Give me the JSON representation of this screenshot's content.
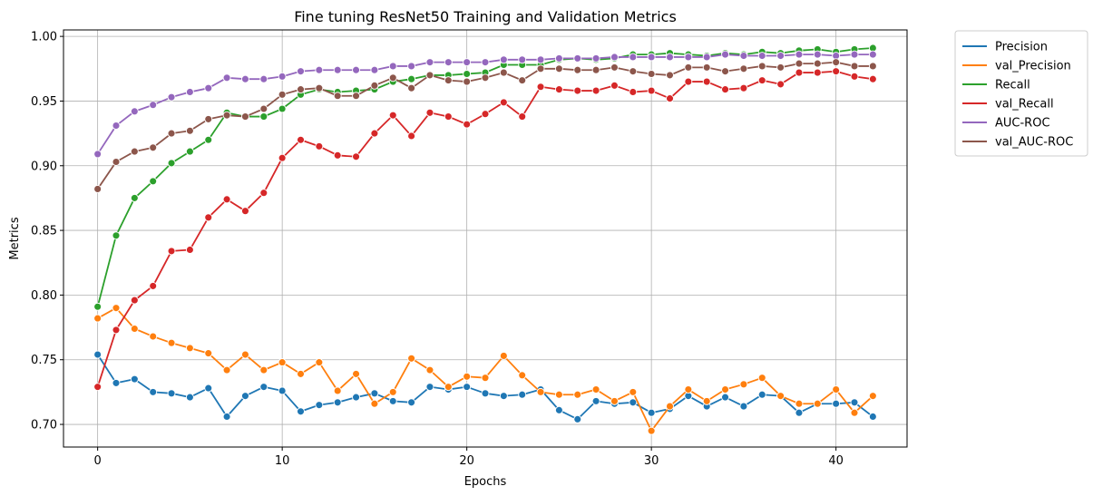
{
  "chart_data": {
    "type": "line",
    "title": "Fine tuning ResNet50 Training and Validation Metrics",
    "xlabel": "Epochs",
    "ylabel": "Metrics",
    "xlim": [
      -1.85,
      43.85
    ],
    "ylim": [
      0.6825,
      1.005
    ],
    "xticks": [
      0,
      10,
      20,
      30,
      40
    ],
    "yticks": [
      0.7,
      0.75,
      0.8,
      0.85,
      0.9,
      0.95,
      1.0
    ],
    "ytick_labels": [
      "0.70",
      "0.75",
      "0.80",
      "0.85",
      "0.90",
      "0.95",
      "1.00"
    ],
    "grid": true,
    "legend_position": "outside-top-right",
    "x": [
      0,
      1,
      2,
      3,
      4,
      5,
      6,
      7,
      8,
      9,
      10,
      11,
      12,
      13,
      14,
      15,
      16,
      17,
      18,
      19,
      20,
      21,
      22,
      23,
      24,
      25,
      26,
      27,
      28,
      29,
      30,
      31,
      32,
      33,
      34,
      35,
      36,
      37,
      38,
      39,
      40,
      41,
      42
    ],
    "series": [
      {
        "name": "Precision",
        "color": "#1f77b4",
        "values": [
          0.754,
          0.732,
          0.735,
          0.725,
          0.724,
          0.721,
          0.728,
          0.706,
          0.722,
          0.729,
          0.726,
          0.71,
          0.715,
          0.717,
          0.721,
          0.724,
          0.718,
          0.717,
          0.729,
          0.727,
          0.729,
          0.724,
          0.722,
          0.723,
          0.727,
          0.711,
          0.704,
          0.718,
          0.716,
          0.717,
          0.709,
          0.712,
          0.722,
          0.714,
          0.721,
          0.714,
          0.723,
          0.722,
          0.709,
          0.716,
          0.716,
          0.717,
          0.706
        ]
      },
      {
        "name": "val_Precision",
        "color": "#ff7f0e",
        "values": [
          0.782,
          0.79,
          0.774,
          0.768,
          0.763,
          0.759,
          0.755,
          0.742,
          0.754,
          0.742,
          0.748,
          0.739,
          0.748,
          0.726,
          0.739,
          0.716,
          0.725,
          0.751,
          0.742,
          0.729,
          0.737,
          0.736,
          0.753,
          0.738,
          0.725,
          0.723,
          0.723,
          0.727,
          0.718,
          0.725,
          0.695,
          0.714,
          0.727,
          0.718,
          0.727,
          0.731,
          0.736,
          0.722,
          0.716,
          0.716,
          0.727,
          0.709,
          0.722
        ]
      },
      {
        "name": "Recall",
        "color": "#2ca02c",
        "values": [
          0.791,
          0.846,
          0.875,
          0.888,
          0.902,
          0.911,
          0.92,
          0.941,
          0.938,
          0.938,
          0.944,
          0.955,
          0.959,
          0.957,
          0.958,
          0.959,
          0.965,
          0.967,
          0.97,
          0.97,
          0.971,
          0.972,
          0.978,
          0.978,
          0.978,
          0.982,
          0.983,
          0.982,
          0.983,
          0.986,
          0.986,
          0.987,
          0.986,
          0.985,
          0.987,
          0.986,
          0.988,
          0.987,
          0.989,
          0.99,
          0.988,
          0.99,
          0.991
        ]
      },
      {
        "name": "val_Recall",
        "color": "#d62728",
        "values": [
          0.729,
          0.773,
          0.796,
          0.807,
          0.834,
          0.835,
          0.86,
          0.874,
          0.865,
          0.879,
          0.906,
          0.92,
          0.915,
          0.908,
          0.907,
          0.925,
          0.939,
          0.923,
          0.941,
          0.938,
          0.932,
          0.94,
          0.949,
          0.938,
          0.961,
          0.959,
          0.958,
          0.958,
          0.962,
          0.957,
          0.958,
          0.952,
          0.965,
          0.965,
          0.959,
          0.96,
          0.966,
          0.963,
          0.972,
          0.972,
          0.973,
          0.969,
          0.967
        ]
      },
      {
        "name": "AUC-ROC",
        "color": "#9467bd",
        "values": [
          0.909,
          0.931,
          0.942,
          0.947,
          0.953,
          0.957,
          0.96,
          0.968,
          0.967,
          0.967,
          0.969,
          0.973,
          0.974,
          0.974,
          0.974,
          0.974,
          0.977,
          0.977,
          0.98,
          0.98,
          0.98,
          0.98,
          0.982,
          0.982,
          0.982,
          0.983,
          0.983,
          0.983,
          0.984,
          0.984,
          0.984,
          0.984,
          0.984,
          0.984,
          0.986,
          0.985,
          0.985,
          0.985,
          0.986,
          0.986,
          0.985,
          0.986,
          0.986
        ]
      },
      {
        "name": "val_AUC-ROC",
        "color": "#8c564b",
        "values": [
          0.882,
          0.903,
          0.911,
          0.914,
          0.925,
          0.927,
          0.936,
          0.939,
          0.938,
          0.944,
          0.955,
          0.959,
          0.96,
          0.954,
          0.954,
          0.962,
          0.968,
          0.96,
          0.97,
          0.966,
          0.965,
          0.968,
          0.972,
          0.966,
          0.975,
          0.975,
          0.974,
          0.974,
          0.976,
          0.973,
          0.971,
          0.97,
          0.976,
          0.976,
          0.973,
          0.975,
          0.977,
          0.976,
          0.979,
          0.979,
          0.98,
          0.977,
          0.977
        ]
      }
    ]
  }
}
